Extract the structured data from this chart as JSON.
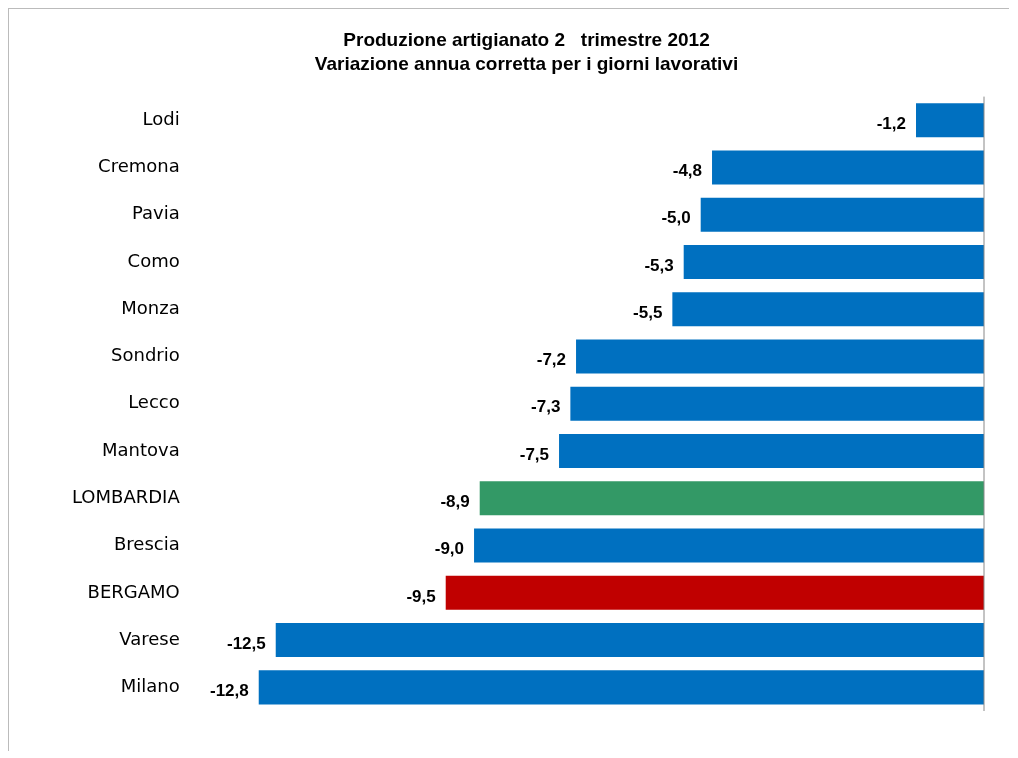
{
  "chart_data": {
    "type": "bar",
    "orientation": "horizontal",
    "title": "Produzione artigianato 2   trimestre 2012",
    "subtitle": "Variazione annua corretta per i giorni lavorativi",
    "categories": [
      "Lodi",
      "Cremona",
      "Pavia",
      "Como",
      "Monza",
      "Sondrio",
      "Lecco",
      "Mantova",
      "LOMBARDIA",
      "Brescia",
      "BERGAMO",
      "Varese",
      "Milano"
    ],
    "values": [
      -1.2,
      -4.8,
      -5.0,
      -5.3,
      -5.5,
      -7.2,
      -7.3,
      -7.5,
      -8.9,
      -9.0,
      -9.5,
      -12.5,
      -12.8
    ],
    "colors": [
      "#0070c0",
      "#0070c0",
      "#0070c0",
      "#0070c0",
      "#0070c0",
      "#0070c0",
      "#0070c0",
      "#0070c0",
      "#339966",
      "#0070c0",
      "#c00000",
      "#0070c0",
      "#0070c0"
    ],
    "value_labels": [
      "-1,2",
      "-4,8",
      "-5,0",
      "-5,3",
      "-5,5",
      "-7,2",
      "-7,3",
      "-7,5",
      "-8,9",
      "-9,0",
      "-9,5",
      "-12,5",
      "-12,8"
    ]
  }
}
